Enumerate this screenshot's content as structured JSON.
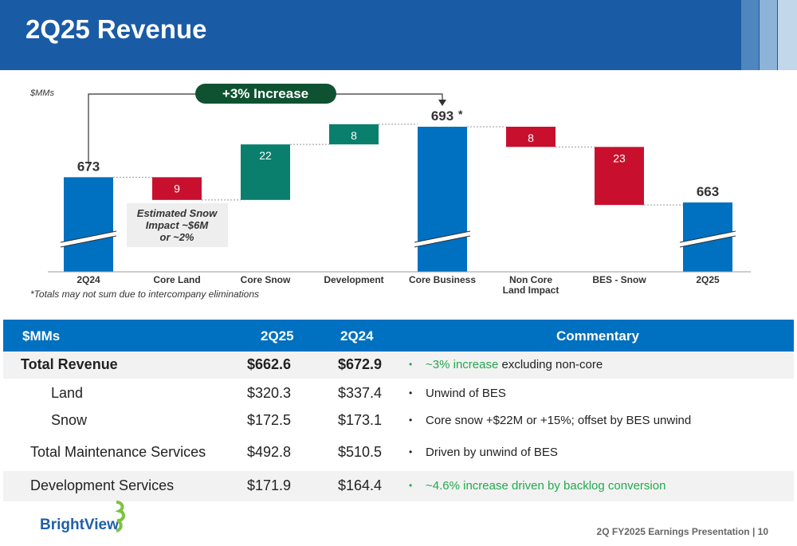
{
  "header": {
    "title": "2Q25 Revenue"
  },
  "chart_data": {
    "type": "waterfall",
    "units": "$MMs",
    "categories": [
      "2Q24",
      "Core Land",
      "Core Snow",
      "Development",
      "Core Business",
      "Non Core\nLand Impact",
      "BES - Snow",
      "2Q25"
    ],
    "steps": [
      {
        "label": "2Q24",
        "kind": "total",
        "value": 673,
        "display": "673"
      },
      {
        "label": "Core Land",
        "kind": "decrease",
        "value": 9,
        "display": "9"
      },
      {
        "label": "Core Snow",
        "kind": "increase",
        "value": 22,
        "display": "22"
      },
      {
        "label": "Development",
        "kind": "increase",
        "value": 8,
        "display": "8"
      },
      {
        "label": "Core Business",
        "kind": "total",
        "value": 693,
        "display": "693"
      },
      {
        "label": "Non Core Land Impact",
        "kind": "decrease",
        "value": 8,
        "display": "8"
      },
      {
        "label": "BES - Snow",
        "kind": "decrease",
        "value": 23,
        "display": "23"
      },
      {
        "label": "2Q25",
        "kind": "total",
        "value": 663,
        "display": "663"
      }
    ],
    "core_business_marker": "*",
    "increase_callout": "+3% Increase",
    "snow_note": "Estimated Snow Impact ~$6M or ~2%",
    "colors": {
      "total": "#0070c0",
      "increase": "#0a7f6e",
      "decrease": "#c8102e",
      "callout": "#0f5232"
    }
  },
  "snow_note_lines": [
    "Estimated Snow",
    "Impact ~$6M",
    "or ~2%"
  ],
  "footnote": "*Totals may not sum due to intercompany eliminations",
  "table": {
    "headers": {
      "label": "$MMs",
      "c1": "2Q25",
      "c2": "2Q24",
      "commentary": "Commentary"
    },
    "rows": [
      {
        "label": "Total Revenue",
        "v1": "$662.6",
        "v2": "$672.9",
        "comment_green": "~3% increase",
        "comment_rest": " excluding non-core"
      },
      {
        "label": "Land",
        "v1": "$320.3",
        "v2": "$337.4",
        "comment_green": "",
        "comment_rest": "Unwind of BES"
      },
      {
        "label": "Snow",
        "v1": "$172.5",
        "v2": "$173.1",
        "comment_green": "",
        "comment_rest": "Core snow +$22M or +15%; offset by BES unwind"
      },
      {
        "label": "Total Maintenance Services",
        "v1": "$492.8",
        "v2": "$510.5",
        "comment_green": "",
        "comment_rest": "Driven by unwind of BES"
      },
      {
        "label": "Development Services",
        "v1": "$171.9",
        "v2": "$164.4",
        "comment_green": "~4.6% increase driven by backlog conversion",
        "comment_rest": ""
      }
    ]
  },
  "brand": {
    "name": "BrightView"
  },
  "footer": {
    "text": "2Q FY2025 Earnings Presentation | 10"
  }
}
